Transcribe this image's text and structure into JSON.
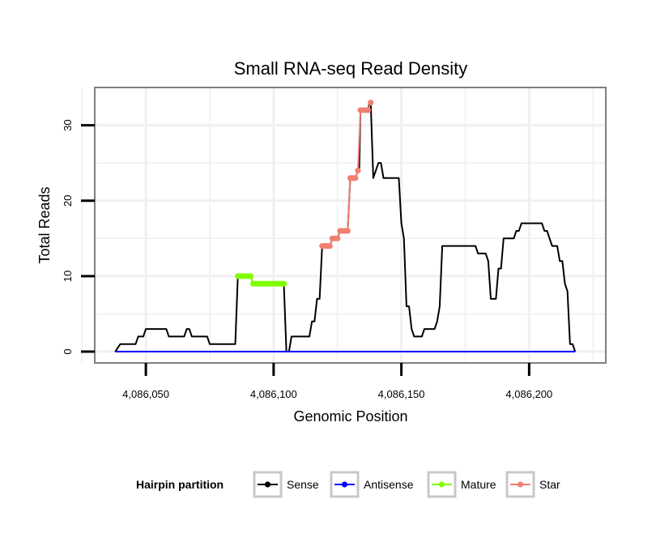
{
  "chart_data": {
    "type": "line",
    "title": "Small RNA-seq Read Density",
    "xlabel": "Genomic Position",
    "ylabel": "Total Reads",
    "xlim": [
      4086030,
      4086230
    ],
    "ylim": [
      -1.5,
      35
    ],
    "x_ticks": [
      4086050,
      4086100,
      4086150,
      4086200
    ],
    "x_tick_labels": [
      "4,086,050",
      "4,086,100",
      "4,086,150",
      "4,086,200"
    ],
    "y_ticks": [
      0,
      10,
      20,
      30
    ],
    "y_tick_labels": [
      "0",
      "10",
      "20",
      "30"
    ],
    "grid": true,
    "legend": {
      "title": "Hairpin partition",
      "position": "bottom",
      "items": [
        "Sense",
        "Antisense",
        "Mature",
        "Star"
      ]
    },
    "colors": {
      "Sense": "#000000",
      "Antisense": "#0000ff",
      "Mature": "#7fff00",
      "Star": "#f08070",
      "grid": "#f0f0f0",
      "frame": "#808080"
    },
    "series": [
      {
        "name": "Sense",
        "type": "line",
        "points": [
          [
            4086038,
            0
          ],
          [
            4086040,
            1
          ],
          [
            4086046,
            1
          ],
          [
            4086047,
            2
          ],
          [
            4086049,
            2
          ],
          [
            4086050,
            3
          ],
          [
            4086058,
            3
          ],
          [
            4086059,
            2
          ],
          [
            4086065,
            2
          ],
          [
            4086066,
            3
          ],
          [
            4086067,
            3
          ],
          [
            4086068,
            2
          ],
          [
            4086074,
            2
          ],
          [
            4086075,
            1
          ],
          [
            4086085,
            1
          ],
          [
            4086086,
            10
          ],
          [
            4086091,
            10
          ],
          [
            4086092,
            9
          ],
          [
            4086104,
            9
          ],
          [
            4086105,
            0
          ],
          [
            4086106,
            0
          ],
          [
            4086107,
            2
          ],
          [
            4086114,
            2
          ],
          [
            4086115,
            4
          ],
          [
            4086116,
            4
          ],
          [
            4086117,
            7
          ],
          [
            4086118,
            7
          ],
          [
            4086119,
            14
          ],
          [
            4086122,
            14
          ],
          [
            4086123,
            15
          ],
          [
            4086125,
            15
          ],
          [
            4086126,
            16
          ],
          [
            4086129,
            16
          ],
          [
            4086130,
            23
          ],
          [
            4086132,
            23
          ],
          [
            4086133,
            24
          ],
          [
            4086133.5,
            24
          ],
          [
            4086134,
            32
          ],
          [
            4086137,
            32
          ],
          [
            4086137.5,
            33
          ],
          [
            4086138,
            33
          ],
          [
            4086139,
            23
          ],
          [
            4086141,
            25
          ],
          [
            4086142,
            25
          ],
          [
            4086143,
            23
          ],
          [
            4086149,
            23
          ],
          [
            4086150,
            17
          ],
          [
            4086151,
            15
          ],
          [
            4086152,
            6
          ],
          [
            4086153,
            6
          ],
          [
            4086154,
            3
          ],
          [
            4086155,
            2
          ],
          [
            4086158,
            2
          ],
          [
            4086159,
            3
          ],
          [
            4086163,
            3
          ],
          [
            4086164,
            4
          ],
          [
            4086165,
            6
          ],
          [
            4086166,
            14
          ],
          [
            4086179,
            14
          ],
          [
            4086180,
            13
          ],
          [
            4086183,
            13
          ],
          [
            4086184,
            12
          ],
          [
            4086185,
            7
          ],
          [
            4086187,
            7
          ],
          [
            4086188,
            11
          ],
          [
            4086189,
            11
          ],
          [
            4086190,
            15
          ],
          [
            4086194,
            15
          ],
          [
            4086195,
            16
          ],
          [
            4086196,
            16
          ],
          [
            4086197,
            17
          ],
          [
            4086205,
            17
          ],
          [
            4086206,
            16
          ],
          [
            4086207,
            16
          ],
          [
            4086208,
            15
          ],
          [
            4086209,
            14
          ],
          [
            4086211,
            14
          ],
          [
            4086212,
            12
          ],
          [
            4086213,
            12
          ],
          [
            4086214,
            9
          ],
          [
            4086215,
            8
          ],
          [
            4086216,
            1
          ],
          [
            4086217,
            1
          ],
          [
            4086218,
            0
          ]
        ]
      },
      {
        "name": "Antisense",
        "type": "line",
        "points": [
          [
            4086038,
            0
          ],
          [
            4086218,
            0
          ]
        ]
      },
      {
        "name": "Mature",
        "type": "line+points",
        "points": [
          [
            4086086,
            10
          ],
          [
            4086087,
            10
          ],
          [
            4086088,
            10
          ],
          [
            4086089,
            10
          ],
          [
            4086090,
            10
          ],
          [
            4086091,
            10
          ],
          [
            4086092,
            9
          ],
          [
            4086093,
            9
          ],
          [
            4086094,
            9
          ],
          [
            4086095,
            9
          ],
          [
            4086096,
            9
          ],
          [
            4086097,
            9
          ],
          [
            4086098,
            9
          ],
          [
            4086099,
            9
          ],
          [
            4086100,
            9
          ],
          [
            4086101,
            9
          ],
          [
            4086102,
            9
          ],
          [
            4086103,
            9
          ],
          [
            4086104,
            9
          ]
        ]
      },
      {
        "name": "Star",
        "type": "line+points",
        "points": [
          [
            4086119,
            14
          ],
          [
            4086120,
            14
          ],
          [
            4086121,
            14
          ],
          [
            4086122,
            14
          ],
          [
            4086123,
            15
          ],
          [
            4086124,
            15
          ],
          [
            4086125,
            15
          ],
          [
            4086126,
            16
          ],
          [
            4086127,
            16
          ],
          [
            4086128,
            16
          ],
          [
            4086129,
            16
          ],
          [
            4086130,
            23
          ],
          [
            4086131,
            23
          ],
          [
            4086132,
            23
          ],
          [
            4086133,
            24
          ],
          [
            4086134,
            32
          ],
          [
            4086135,
            32
          ],
          [
            4086136,
            32
          ],
          [
            4086137,
            32
          ],
          [
            4086138,
            33
          ]
        ]
      }
    ]
  }
}
